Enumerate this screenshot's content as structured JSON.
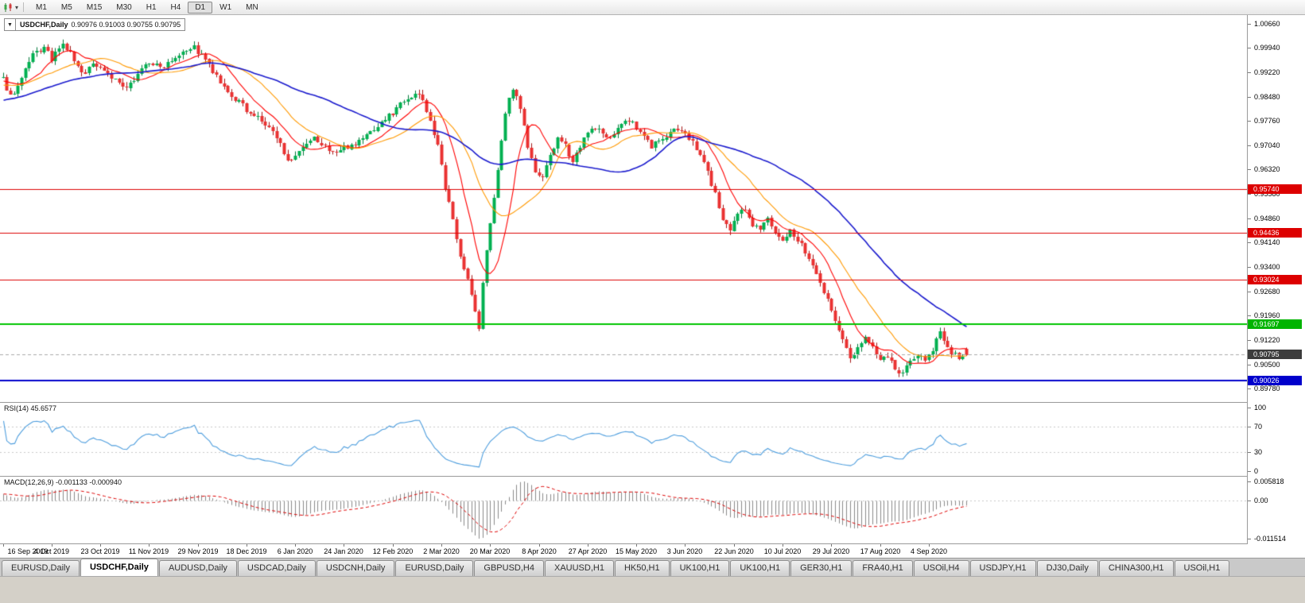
{
  "toolbar": {
    "timeframes": [
      "M1",
      "M5",
      "M15",
      "M30",
      "H1",
      "H4",
      "D1",
      "W1",
      "MN"
    ],
    "active": "D1"
  },
  "chart_header": {
    "symbol": "USDCHF,Daily",
    "ohlc": "0.90976 0.91003 0.90755 0.90795"
  },
  "price_axis": {
    "ticks": [
      "1.00660",
      "0.99940",
      "0.99220",
      "0.98480",
      "0.97760",
      "0.97040",
      "0.96320",
      "0.95580",
      "0.94860",
      "0.94140",
      "0.93400",
      "0.92680",
      "0.91960",
      "0.91220",
      "0.90500",
      "0.89780"
    ],
    "badges": [
      {
        "text": "0.95740",
        "price": 0.9574,
        "bg": "#dd0000"
      },
      {
        "text": "0.94436",
        "price": 0.94436,
        "bg": "#dd0000"
      },
      {
        "text": "0.93024",
        "price": 0.93024,
        "bg": "#dd0000"
      },
      {
        "text": "0.91697",
        "price": 0.91697,
        "bg": "#00b400"
      },
      {
        "text": "0.90795",
        "price": 0.90795,
        "bg": "#3c3c3c"
      },
      {
        "text": "0.90026",
        "price": 0.90026,
        "bg": "#0000cc"
      }
    ]
  },
  "date_axis": {
    "labels": [
      "16 Sep 2019",
      "4 Oct 2019",
      "23 Oct 2019",
      "11 Nov 2019",
      "29 Nov 2019",
      "18 Dec 2019",
      "6 Jan 2020",
      "24 Jan 2020",
      "12 Feb 2020",
      "2 Mar 2020",
      "20 Mar 2020",
      "8 Apr 2020",
      "27 Apr 2020",
      "15 May 2020",
      "3 Jun 2020",
      "22 Jun 2020",
      "10 Jul 2020",
      "29 Jul 2020",
      "17 Aug 2020",
      "4 Sep 2020"
    ],
    "bar_indices": [
      0,
      13,
      26,
      39,
      52,
      65,
      78,
      91,
      104,
      117,
      130,
      143,
      156,
      169,
      182,
      195,
      208,
      221,
      234,
      247
    ]
  },
  "rsi_panel": {
    "label": "RSI(14)",
    "value": "45.6577",
    "ticks": [
      "100",
      "70",
      "30",
      "0"
    ]
  },
  "macd_panel": {
    "label": "MACD(12,26,9)",
    "values": "-0.001133 -0.000940",
    "ticks": [
      "0.005818",
      "0.00",
      "-0.011514"
    ]
  },
  "tabs": {
    "active_index": 1,
    "items": [
      {
        "label": "EURUSD,Daily"
      },
      {
        "label": "USDCHF,Daily"
      },
      {
        "label": "AUDUSD,Daily"
      },
      {
        "label": "USDCAD,Daily"
      },
      {
        "label": "USDCNH,Daily"
      },
      {
        "label": "EURUSD,Daily"
      },
      {
        "label": "GBPUSD,H4"
      },
      {
        "label": "XAUUSD,H1"
      },
      {
        "label": "HK50,H1"
      },
      {
        "label": "UK100,H1"
      },
      {
        "label": "UK100,H1"
      },
      {
        "label": "GER30,H1"
      },
      {
        "label": "FRA40,H1"
      },
      {
        "label": "USOil,H4"
      },
      {
        "label": "USDJPY,H1"
      },
      {
        "label": "DJ30,Daily"
      },
      {
        "label": "CHINA300,H1"
      },
      {
        "label": "USOil,H1"
      }
    ]
  },
  "chart_data": {
    "type": "candlestick",
    "symbol": "USDCHF",
    "timeframe": "Daily",
    "bars": 258,
    "visible_price_range": [
      0.89379,
      1.00921
    ],
    "last_bar": {
      "open": 0.90976,
      "high": 0.91003,
      "low": 0.90755,
      "close": 0.90795
    },
    "noise": {
      "close": 0.0009,
      "wick": 0.0014,
      "seed": 9
    },
    "close_anchors": [
      [
        -60,
        0.971
      ],
      [
        -45,
        0.9762
      ],
      [
        -30,
        0.983
      ],
      [
        -15,
        0.9872
      ],
      [
        -5,
        0.9892
      ],
      [
        0,
        0.99
      ],
      [
        2,
        0.9852
      ],
      [
        4,
        0.9878
      ],
      [
        6,
        0.9925
      ],
      [
        8,
        0.9972
      ],
      [
        11,
        0.9994
      ],
      [
        13,
        0.9962
      ],
      [
        16,
        1.0002
      ],
      [
        18,
        0.9978
      ],
      [
        21,
        0.9916
      ],
      [
        24,
        0.9946
      ],
      [
        27,
        0.993
      ],
      [
        30,
        0.9896
      ],
      [
        33,
        0.9868
      ],
      [
        36,
        0.9921
      ],
      [
        39,
        0.9952
      ],
      [
        42,
        0.9934
      ],
      [
        45,
        0.9962
      ],
      [
        48,
        0.9988
      ],
      [
        51,
        0.9996
      ],
      [
        54,
        0.9958
      ],
      [
        57,
        0.9905
      ],
      [
        60,
        0.9856
      ],
      [
        63,
        0.9832
      ],
      [
        66,
        0.98
      ],
      [
        69,
        0.9776
      ],
      [
        72,
        0.9742
      ],
      [
        75,
        0.9686
      ],
      [
        77,
        0.9652
      ],
      [
        80,
        0.9692
      ],
      [
        83,
        0.9722
      ],
      [
        86,
        0.9698
      ],
      [
        89,
        0.9682
      ],
      [
        92,
        0.9702
      ],
      [
        95,
        0.9716
      ],
      [
        98,
        0.9744
      ],
      [
        101,
        0.9772
      ],
      [
        104,
        0.9802
      ],
      [
        107,
        0.9842
      ],
      [
        110,
        0.9856
      ],
      [
        112,
        0.984
      ],
      [
        114,
        0.9778
      ],
      [
        116,
        0.97
      ],
      [
        118,
        0.9574
      ],
      [
        120,
        0.9482
      ],
      [
        122,
        0.938
      ],
      [
        124,
        0.9302
      ],
      [
        126,
        0.9206
      ],
      [
        127,
        0.9158
      ],
      [
        128,
        0.9292
      ],
      [
        130,
        0.9478
      ],
      [
        132,
        0.9622
      ],
      [
        134,
        0.9802
      ],
      [
        136,
        0.9878
      ],
      [
        138,
        0.9818
      ],
      [
        140,
        0.97
      ],
      [
        142,
        0.9622
      ],
      [
        144,
        0.96
      ],
      [
        146,
        0.9678
      ],
      [
        148,
        0.972
      ],
      [
        150,
        0.9698
      ],
      [
        152,
        0.966
      ],
      [
        154,
        0.9702
      ],
      [
        156,
        0.9738
      ],
      [
        158,
        0.9758
      ],
      [
        161,
        0.972
      ],
      [
        164,
        0.9758
      ],
      [
        167,
        0.9778
      ],
      [
        170,
        0.9742
      ],
      [
        173,
        0.9704
      ],
      [
        176,
        0.9722
      ],
      [
        179,
        0.9748
      ],
      [
        182,
        0.9736
      ],
      [
        184,
        0.9718
      ],
      [
        186,
        0.9678
      ],
      [
        188,
        0.9622
      ],
      [
        190,
        0.956
      ],
      [
        192,
        0.9478
      ],
      [
        194,
        0.944
      ],
      [
        196,
        0.9502
      ],
      [
        198,
        0.9512
      ],
      [
        200,
        0.947
      ],
      [
        202,
        0.9458
      ],
      [
        204,
        0.9482
      ],
      [
        206,
        0.9438
      ],
      [
        208,
        0.9422
      ],
      [
        210,
        0.945
      ],
      [
        212,
        0.942
      ],
      [
        214,
        0.9388
      ],
      [
        216,
        0.9348
      ],
      [
        218,
        0.93
      ],
      [
        220,
        0.9242
      ],
      [
        222,
        0.918
      ],
      [
        224,
        0.9122
      ],
      [
        226,
        0.9066
      ],
      [
        228,
        0.9102
      ],
      [
        230,
        0.9132
      ],
      [
        232,
        0.9098
      ],
      [
        234,
        0.9058
      ],
      [
        236,
        0.9072
      ],
      [
        238,
        0.904
      ],
      [
        240,
        0.9018
      ],
      [
        242,
        0.9062
      ],
      [
        244,
        0.9082
      ],
      [
        246,
        0.9058
      ],
      [
        248,
        0.9098
      ],
      [
        250,
        0.9155
      ],
      [
        251,
        0.9122
      ],
      [
        253,
        0.9082
      ],
      [
        255,
        0.9068
      ],
      [
        257,
        0.90795
      ]
    ],
    "moving_averages": [
      {
        "period": 10,
        "color_key": "ma_fast"
      },
      {
        "period": 21,
        "color_key": "ma_mid"
      },
      {
        "period": 50,
        "color_key": "ma_slow"
      }
    ],
    "levels": [
      {
        "price": 0.9574,
        "color_key": "level_red",
        "width": 1
      },
      {
        "price": 0.94436,
        "color_key": "level_red",
        "width": 1
      },
      {
        "price": 0.93024,
        "color_key": "level_red",
        "width": 1
      },
      {
        "price": 0.91697,
        "color_key": "level_green",
        "width": 2
      },
      {
        "price": 0.90026,
        "color_key": "level_blue",
        "width": 2
      }
    ],
    "current_price": 0.90795,
    "rsi": {
      "period": 14,
      "value": 45.6577,
      "overbought": 70,
      "oversold": 30
    },
    "macd": {
      "fast": 12,
      "slow": 26,
      "signal": 9,
      "main_value": -0.001133,
      "signal_value": -0.00094,
      "scale_max": 0.005818,
      "scale_min": -0.011514
    },
    "colors": {
      "up": "#00b050",
      "up_line": "#00793a",
      "down": "#ea3131",
      "down_line": "#a31515",
      "ma_fast": "#ff0000",
      "ma_mid": "#ff9900",
      "ma_slow": "#1a1acd",
      "rsi": "#4d9ddd",
      "macd_hist": "#8a8a8a",
      "macd_signal": "#dd0000",
      "level_red": "#dd0000",
      "level_green": "#00c400",
      "level_blue": "#0000cc",
      "current_dash": "#aaaaaa",
      "grid_dot": "#c8c8c8"
    }
  }
}
